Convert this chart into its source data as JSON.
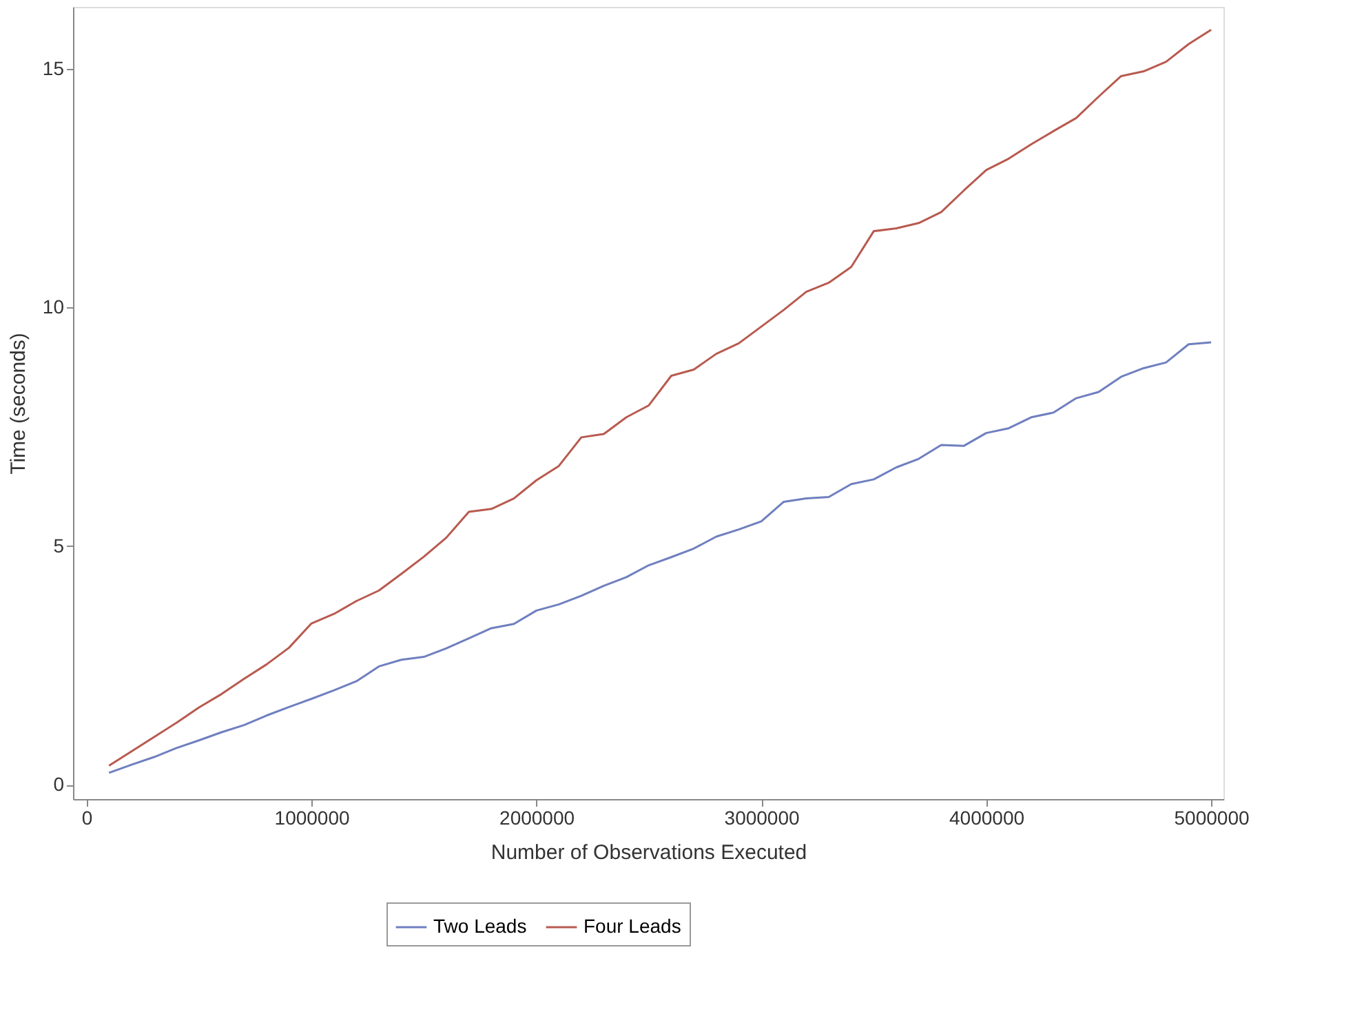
{
  "chart_data": {
    "type": "line",
    "xlabel": "Number of Observations Executed",
    "ylabel": "Time (seconds)",
    "x": [
      100000,
      200000,
      300000,
      400000,
      500000,
      600000,
      700000,
      800000,
      900000,
      1000000,
      1100000,
      1200000,
      1300000,
      1400000,
      1500000,
      1600000,
      1700000,
      1800000,
      1900000,
      2000000,
      2100000,
      2200000,
      2300000,
      2400000,
      2500000,
      2600000,
      2700000,
      2800000,
      2900000,
      3000000,
      3100000,
      3200000,
      3300000,
      3400000,
      3500000,
      3600000,
      3700000,
      3800000,
      3900000,
      4000000,
      4100000,
      4200000,
      4300000,
      4400000,
      4500000,
      4600000,
      4700000,
      4800000,
      4900000,
      5000000
    ],
    "series": [
      {
        "name": "Two Leads",
        "color": "#6f7fbf",
        "values": [
          0.25,
          0.42,
          0.58,
          0.77,
          0.93,
          1.1,
          1.25,
          1.45,
          1.63,
          1.8,
          1.98,
          2.17,
          2.48,
          2.62,
          2.68,
          2.86,
          3.07,
          3.28,
          3.37,
          3.65,
          3.78,
          3.96,
          4.17,
          4.35,
          4.6,
          4.77,
          4.95,
          5.2,
          5.35,
          5.52,
          5.93,
          6.0,
          6.03,
          6.3,
          6.4,
          6.65,
          6.83,
          7.12,
          7.1,
          7.37,
          7.47,
          7.7,
          7.8,
          8.1,
          8.23,
          8.55,
          8.73,
          8.85,
          9.23,
          9.27
        ]
      },
      {
        "name": "Four Leads",
        "color": "#b85a4f",
        "values": [
          0.4,
          0.7,
          1.0,
          1.3,
          1.62,
          1.9,
          2.22,
          2.52,
          2.87,
          3.38,
          3.58,
          3.85,
          4.07,
          4.42,
          4.78,
          5.18,
          5.72,
          5.78,
          6.0,
          6.38,
          6.68,
          7.28,
          7.35,
          7.7,
          7.95,
          8.57,
          8.7,
          9.03,
          9.25,
          9.6,
          9.95,
          10.33,
          10.52,
          10.85,
          11.6,
          11.66,
          11.77,
          12.0,
          12.45,
          12.88,
          13.12,
          13.42,
          13.7,
          13.97,
          14.42,
          14.85,
          14.95,
          15.15,
          15.52,
          15.82
        ]
      }
    ],
    "xlim": [
      -60000,
      5055000
    ],
    "xticks": [
      0,
      1000000,
      2000000,
      3000000,
      4000000,
      5000000
    ],
    "ylim": [
      -0.3,
      16.3
    ],
    "yticks": [
      0,
      5,
      10,
      15
    ],
    "grid": false,
    "legend": "bottom",
    "line_style": "solid",
    "marker": "none"
  }
}
